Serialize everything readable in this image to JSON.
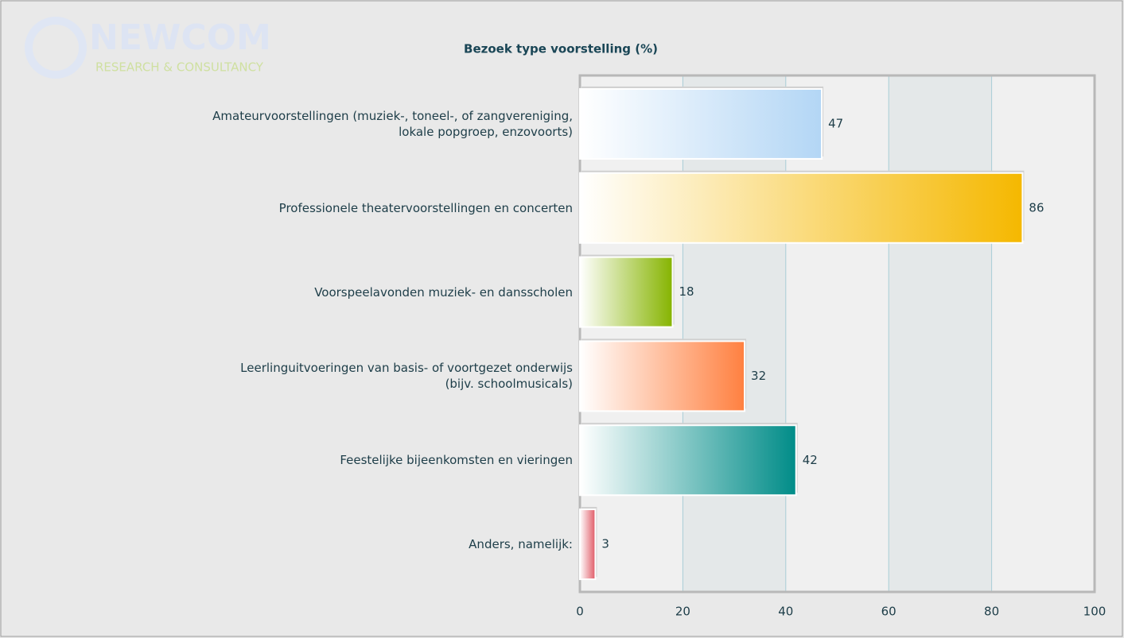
{
  "logo": {
    "name": "NEWCOM",
    "tagline": "RESEARCH & CONSULTANCY"
  },
  "chart_data": {
    "type": "bar",
    "orientation": "horizontal",
    "title": "Bezoek type voorstelling (%)",
    "categories": [
      "Amateurvoorstellingen (muziek-, toneel-, of zangvereniging,\nlokale popgroep, enzovoorts)",
      "Professionele theatervoorstellingen en concerten",
      "Voorspeelavonden muziek- en dansscholen",
      "Leerlinguitvoeringen van basis- of voortgezet onderwijs\n(bijv. schoolmusicals)",
      "Feestelijke bijeenkomsten en vieringen",
      "Anders, namelijk:"
    ],
    "values": [
      47,
      86,
      18,
      32,
      42,
      3
    ],
    "colors": [
      "#b3d6f5",
      "#f5b800",
      "#86b400",
      "#ff8040",
      "#008c88",
      "#e05a66"
    ],
    "xlim": [
      0,
      100
    ],
    "xticks": [
      0,
      20,
      40,
      60,
      80,
      100
    ],
    "grid": true
  }
}
